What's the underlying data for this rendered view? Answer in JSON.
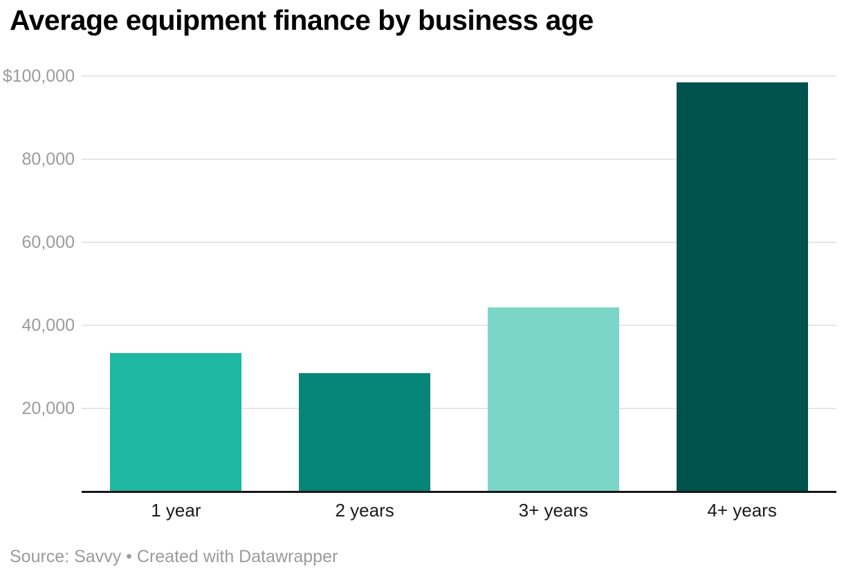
{
  "title": "Average equipment finance by business age",
  "footer": {
    "source_prefix": "Source:",
    "source_name": "Savvy",
    "separator": "•",
    "attribution": "Created with Datawrapper"
  },
  "colors": {
    "background": "#ffffff",
    "title_text": "#000000",
    "gridline": "#e6e6e6",
    "axis_line": "#161616",
    "y_tick_label": "#9b9b9b",
    "x_tick_label": "#1a1a1a",
    "footer_text": "#9b9b9b"
  },
  "chart_data": {
    "type": "bar",
    "title": "Average equipment finance by business age",
    "categories": [
      "1 year",
      "2 years",
      "3+ years",
      "4+ years"
    ],
    "values": [
      33300,
      28500,
      44300,
      98500
    ],
    "bar_colors": [
      "#1eb7a0",
      "#068678",
      "#7bd6c7",
      "#00524c"
    ],
    "value_prefix": "$",
    "ylim": [
      0,
      100000
    ],
    "y_ticks": [
      {
        "value": 20000,
        "label": "20,000"
      },
      {
        "value": 40000,
        "label": "40,000"
      },
      {
        "value": 60000,
        "label": "60,000"
      },
      {
        "value": 80000,
        "label": "80,000"
      },
      {
        "value": 100000,
        "label": "$100,000"
      }
    ],
    "xlabel": "",
    "ylabel": "",
    "grid": "horizontal",
    "legend": "none"
  }
}
